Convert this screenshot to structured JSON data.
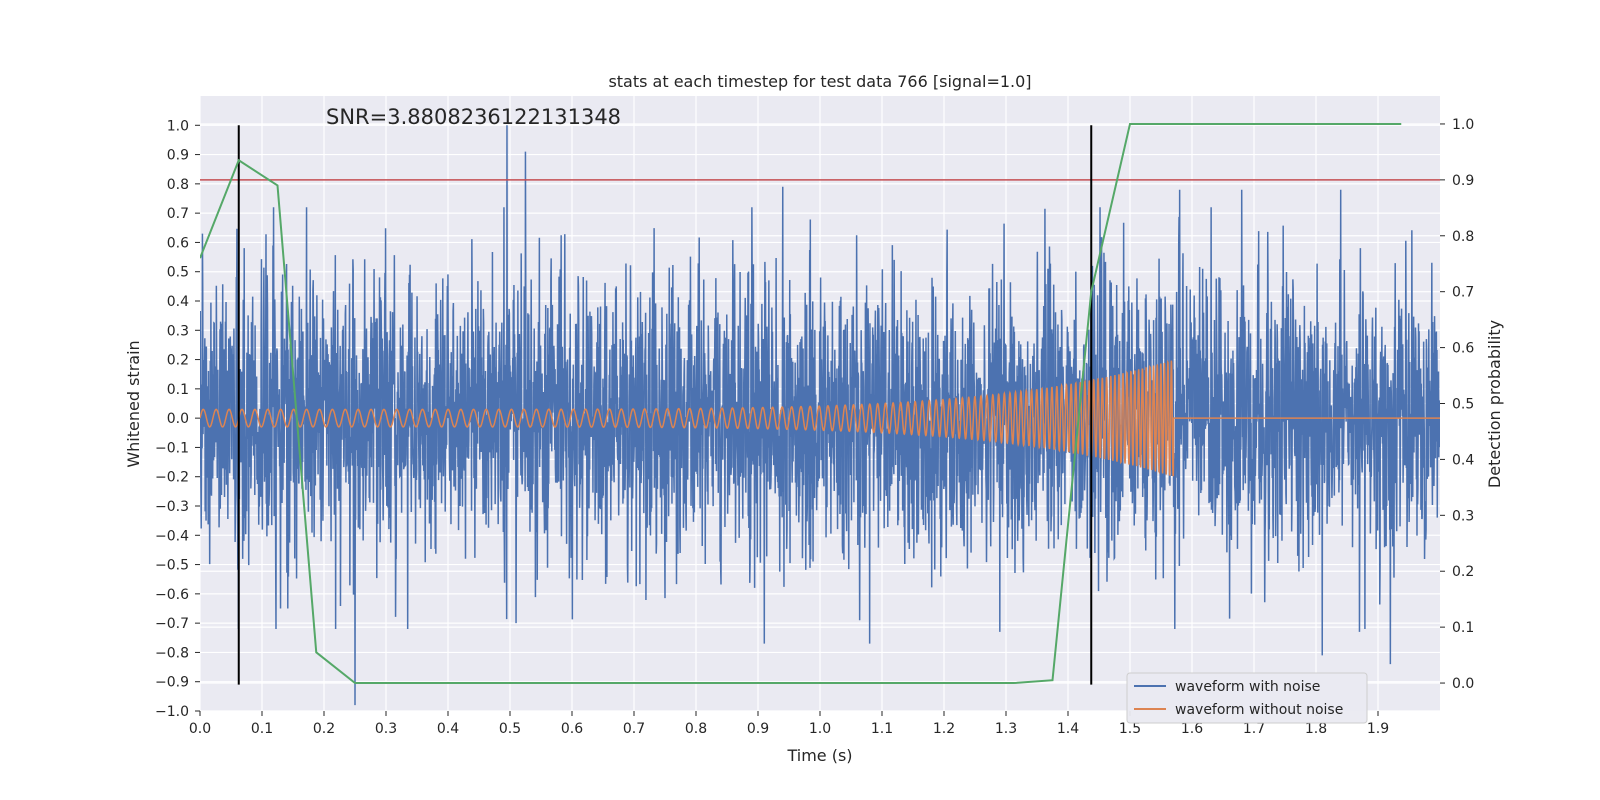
{
  "chart_data": {
    "type": "line",
    "title": "stats at each timestep for test data 766 [signal=1.0]",
    "xlabel": "Time (s)",
    "ylabel": "Whitened strain",
    "ylabel_right": "Detection probability",
    "xlim": [
      0.0,
      2.0
    ],
    "ylim": [
      -1.0,
      1.1
    ],
    "ylim_right": [
      -0.05,
      1.05
    ],
    "x_ticks": [
      0.0,
      0.1,
      0.2,
      0.3,
      0.4,
      0.5,
      0.6,
      0.7,
      0.8,
      0.9,
      1.0,
      1.1,
      1.2,
      1.3,
      1.4,
      1.5,
      1.6,
      1.7,
      1.8,
      1.9
    ],
    "x_tick_labels": [
      "0.0",
      "0.1",
      "0.2",
      "0.3",
      "0.4",
      "0.5",
      "0.6",
      "0.7",
      "0.8",
      "0.9",
      "1.0",
      "1.1",
      "1.2",
      "1.3",
      "1.4",
      "1.5",
      "1.6",
      "1.7",
      "1.8",
      "1.9"
    ],
    "y_ticks": [
      -1.0,
      -0.9,
      -0.8,
      -0.7,
      -0.6,
      -0.5,
      -0.4,
      -0.3,
      -0.2,
      -0.1,
      0.0,
      0.1,
      0.2,
      0.3,
      0.4,
      0.5,
      0.6,
      0.7,
      0.8,
      0.9,
      1.0
    ],
    "y_tick_labels": [
      "−1.0",
      "−0.9",
      "−0.8",
      "−0.7",
      "−0.6",
      "−0.5",
      "−0.4",
      "−0.3",
      "−0.2",
      "−0.1",
      "0.0",
      "0.1",
      "0.2",
      "0.3",
      "0.4",
      "0.5",
      "0.6",
      "0.7",
      "0.8",
      "0.9",
      "1.0"
    ],
    "y_ticks_right": [
      0.0,
      0.1,
      0.2,
      0.3,
      0.4,
      0.5,
      0.6,
      0.7,
      0.8,
      0.9,
      1.0
    ],
    "y_tick_labels_right": [
      "0.0",
      "0.1",
      "0.2",
      "0.3",
      "0.4",
      "0.5",
      "0.6",
      "0.7",
      "0.8",
      "0.9",
      "1.0"
    ],
    "annotation": "SNR=3.8808236122131348",
    "annotation_pos": {
      "x": 0.2,
      "y": 1.0
    },
    "noisy_waveform": {
      "name": "waveform with noise",
      "color": "#4c72b0",
      "sample_rate": 2048,
      "duration": 2.0,
      "std": 0.24,
      "peaks": [
        {
          "t": 0.495,
          "v": 1.0
        },
        {
          "t": 0.525,
          "v": 0.91
        },
        {
          "t": 0.94,
          "v": 0.79
        },
        {
          "t": 1.58,
          "v": 0.78
        },
        {
          "t": 1.68,
          "v": 0.78
        },
        {
          "t": 1.84,
          "v": 0.78
        },
        {
          "t": 0.25,
          "v": -0.98
        },
        {
          "t": 1.92,
          "v": -0.84
        },
        {
          "t": 1.81,
          "v": -0.81
        },
        {
          "t": 0.91,
          "v": -0.77
        },
        {
          "t": 1.08,
          "v": -0.77
        },
        {
          "t": 0.13,
          "v": -0.65
        },
        {
          "t": 0.51,
          "v": -0.7
        },
        {
          "t": 1.87,
          "v": -0.73
        },
        {
          "t": 1.29,
          "v": -0.73
        }
      ]
    },
    "clean_waveform": {
      "name": "waveform without noise",
      "color": "#dd8452",
      "f0": 48,
      "f1": 180,
      "t_end": 1.57,
      "a0": 0.03,
      "a_max": 0.2
    },
    "probability": {
      "name": "detection probability",
      "color": "#55a868",
      "t": [
        0.0,
        0.0625,
        0.125,
        0.1875,
        0.25,
        0.3125,
        1.3125,
        1.375,
        1.4375,
        1.5,
        1.5625,
        1.9375
      ],
      "p": [
        0.76,
        0.935,
        0.89,
        0.055,
        0.0,
        0.0,
        0.0,
        0.005,
        0.7,
        1.0,
        1.0,
        1.0
      ]
    },
    "threshold": {
      "value": 0.9,
      "axis": "right",
      "color": "#c44e52"
    },
    "markers": {
      "t": [
        0.0625,
        1.4375
      ],
      "y_from": -0.91,
      "y_to": 1.0,
      "color": "#000000"
    },
    "legend": {
      "position": "lower-right",
      "entries": [
        {
          "label": "waveform with noise",
          "color": "#4c72b0"
        },
        {
          "label": "waveform without noise",
          "color": "#dd8452"
        }
      ]
    },
    "grid": true,
    "background": "#eaeaf2"
  }
}
